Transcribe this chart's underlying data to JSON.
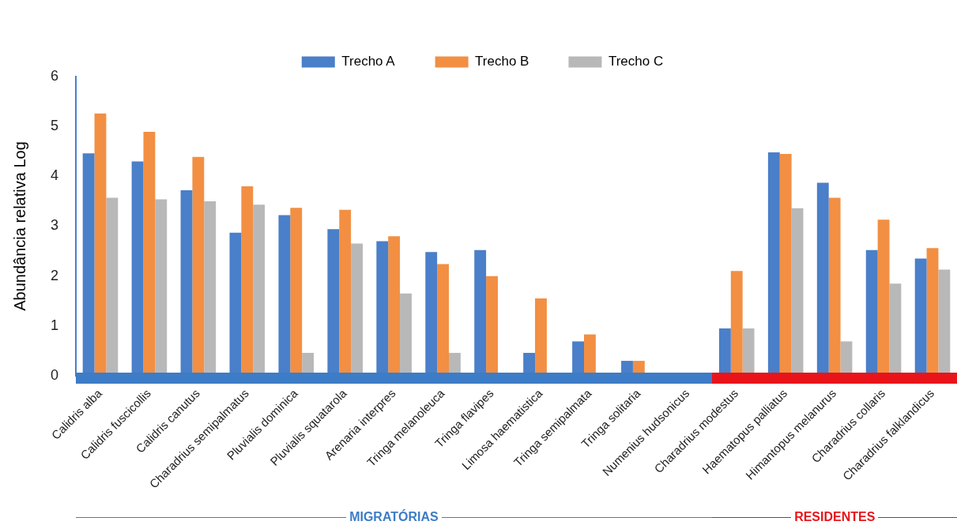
{
  "chart_data": {
    "type": "bar",
    "ylabel": "Abundância relativa Log",
    "categories": [
      "Calidris alba",
      "Calidris fuscicollis",
      "Calidris canutus",
      "Charadrius semipalmatus",
      "Pluvialis dominica",
      "Pluvialis squatarola",
      "Arenaria interpres",
      "Tringa melanoleuca",
      "Tringa flavipes",
      "Limosa haematistica",
      "Tringa semipalmata",
      "Tringa solitaria",
      "Numenius hudsonicus",
      "Charadrius modestus",
      "Haematopus palliatus",
      "Himantopus melanurus",
      "Charadrius collaris",
      "Charadrius falklandicus"
    ],
    "series": [
      {
        "name": "Trecho A",
        "color": "#4a7fc9",
        "values": [
          4.46,
          4.3,
          3.72,
          2.87,
          3.22,
          2.94,
          2.7,
          2.48,
          2.52,
          0.46,
          0.69,
          0.3,
          0,
          0.95,
          4.48,
          3.87,
          2.52,
          2.35
        ]
      },
      {
        "name": "Trecho B",
        "color": "#f28f43",
        "values": [
          5.26,
          4.89,
          4.39,
          3.8,
          3.37,
          3.33,
          2.8,
          2.24,
          2.0,
          1.55,
          0.83,
          0.3,
          0,
          2.1,
          4.45,
          3.57,
          3.13,
          2.56
        ]
      },
      {
        "name": "Trecho C",
        "color": "#b8b8b8",
        "values": [
          3.57,
          3.54,
          3.5,
          3.43,
          0.46,
          2.65,
          1.65,
          0.46,
          0,
          0,
          0,
          0,
          0,
          0.95,
          3.36,
          0.69,
          1.85,
          2.13
        ]
      }
    ],
    "ylim": [
      0,
      6
    ],
    "yticks": [
      0,
      1,
      2,
      3,
      4,
      5,
      6
    ],
    "grid": false,
    "legend": "top",
    "annotations": [
      "MIGRATÓRIAS",
      "RESIDENTES"
    ]
  }
}
